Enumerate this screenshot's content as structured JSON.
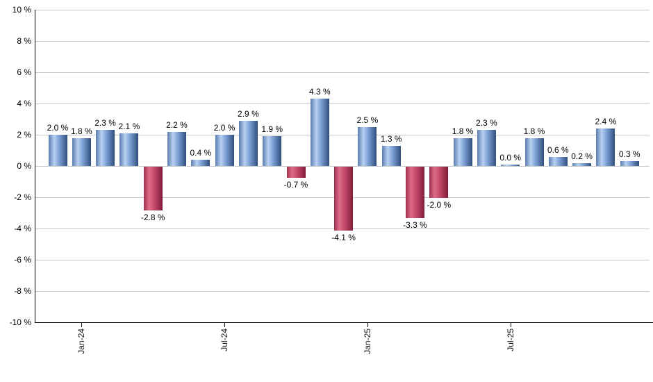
{
  "chart_data": {
    "type": "bar",
    "title": "",
    "xlabel": "",
    "ylabel": "",
    "ylim": [
      -10,
      10
    ],
    "y_tick_step": 2,
    "y_tick_suffix": " %",
    "grid": true,
    "legend_position": "none",
    "values": [
      2.0,
      1.8,
      2.3,
      2.1,
      -2.8,
      2.2,
      0.4,
      2.0,
      2.9,
      1.9,
      -0.7,
      4.3,
      -4.1,
      2.5,
      1.3,
      -3.3,
      -2.0,
      1.8,
      2.3,
      0.0,
      1.8,
      0.6,
      0.2,
      2.4,
      0.3
    ],
    "bar_labels": [
      "2.0 %",
      "1.8 %",
      "2.3 %",
      "2.1 %",
      "-2.8 %",
      "2.2 %",
      "0.4 %",
      "2.0 %",
      "2.9 %",
      "1.9 %",
      "-0.7 %",
      "4.3 %",
      "-4.1 %",
      "2.5 %",
      "1.3 %",
      "-3.3 %",
      "-2.0 %",
      "1.8 %",
      "2.3 %",
      "0.0 %",
      "1.8 %",
      "0.6 %",
      "0.2 %",
      "2.4 %",
      "0.3 %"
    ],
    "y_tick_labels": [
      "10 %",
      "8 %",
      "6 %",
      "4 %",
      "2 %",
      "0 %",
      "-2 %",
      "-4 %",
      "-6 %",
      "-8 %",
      "-10 %"
    ],
    "x_ticks": [
      {
        "bar_index": 1,
        "label": "Jan-24"
      },
      {
        "bar_index": 7,
        "label": "Jul-24"
      },
      {
        "bar_index": 13,
        "label": "Jan-25"
      },
      {
        "bar_index": 19,
        "label": "Jul-25"
      }
    ],
    "colors": {
      "positive_bar_main": "#7ea3d8",
      "positive_bar_highlight": "#b9d0f0",
      "positive_bar_edge": "#2f4e7c",
      "negative_bar_main": "#c44a6b",
      "negative_bar_highlight": "#dd6d88",
      "negative_bar_edge": "#801c38",
      "gridline": "#c8c8c8",
      "axis": "#000000",
      "label_text": "#000000",
      "background": "#ffffff"
    }
  }
}
